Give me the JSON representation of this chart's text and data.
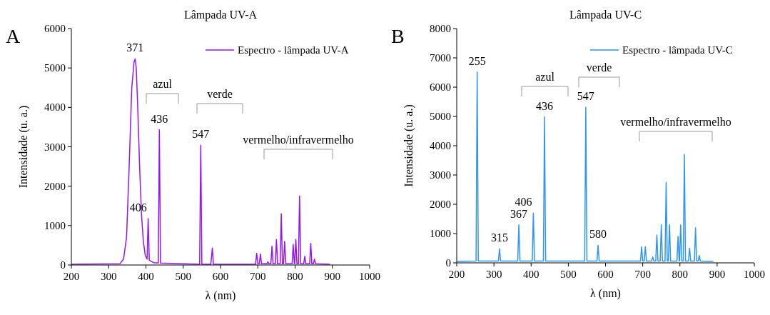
{
  "chart_data": [
    {
      "type": "line",
      "title": "Lâmpada UV-A",
      "xlabel": "λ (nm)",
      "ylabel": "Intensidade (u. a.)",
      "xlim": [
        200,
        1000
      ],
      "xticks": [
        200,
        300,
        400,
        500,
        600,
        700,
        800,
        900,
        1000
      ],
      "ylim": [
        0,
        6000
      ],
      "yticks": [
        0,
        1000,
        2000,
        3000,
        4000,
        5000,
        6000
      ],
      "grid": false,
      "legend": "top right",
      "marker": "none",
      "line_style": "solid",
      "series": [
        {
          "name": "Espectro - lâmpada UV-A",
          "color": "#9416f5",
          "x": [
            200,
            330,
            340,
            348,
            355,
            362,
            368,
            371,
            374,
            378,
            383,
            388,
            393,
            398,
            403,
            406,
            409,
            420,
            433,
            436,
            439,
            500,
            544,
            547,
            550,
            574,
            578,
            581,
            694,
            697,
            700,
            704,
            707,
            710,
            724,
            727,
            730,
            735,
            738,
            741,
            747,
            750,
            753,
            760,
            763,
            766,
            769,
            772,
            775,
            792,
            795,
            798,
            799,
            802,
            805,
            809,
            812,
            815,
            823,
            826,
            829,
            839,
            842,
            845,
            849,
            852,
            855,
            893
          ],
          "values": [
            20,
            30,
            150,
            700,
            2500,
            4500,
            5150,
            5230,
            5000,
            4000,
            2500,
            1300,
            600,
            250,
            150,
            1180,
            120,
            60,
            50,
            3430,
            50,
            30,
            20,
            3040,
            20,
            20,
            430,
            20,
            20,
            300,
            30,
            30,
            280,
            30,
            30,
            80,
            30,
            30,
            480,
            30,
            30,
            650,
            30,
            30,
            1300,
            30,
            30,
            600,
            30,
            30,
            520,
            30,
            30,
            650,
            30,
            30,
            1750,
            30,
            30,
            220,
            30,
            30,
            550,
            30,
            30,
            150,
            30,
            20
          ]
        }
      ],
      "annotations": [
        "A",
        "azul",
        "verde",
        "vermelho/infravermelho",
        {
          "text": "371",
          "x": 371,
          "y": 5230
        },
        {
          "text": "406",
          "x": 406,
          "y": 1180
        },
        {
          "text": "436",
          "x": 436,
          "y": 3430
        },
        {
          "text": "547",
          "x": 547,
          "y": 3040
        }
      ]
    },
    {
      "type": "line",
      "title": "Lâmpada UV-C",
      "xlabel": "λ (nm)",
      "ylabel": "Intensidade (u. a.)",
      "xlim": [
        200,
        1000
      ],
      "xticks": [
        200,
        300,
        400,
        500,
        600,
        700,
        800,
        900,
        1000
      ],
      "ylim": [
        0,
        8000
      ],
      "yticks": [
        0,
        1000,
        2000,
        3000,
        4000,
        5000,
        6000,
        7000,
        8000
      ],
      "grid": false,
      "legend": "top right",
      "marker": "none",
      "line_style": "solid",
      "series": [
        {
          "name": "Espectro - lâmpada UV-C",
          "color": "#2f95f5",
          "x": [
            200,
            252,
            255,
            258,
            312,
            315,
            318,
            364,
            367,
            370,
            403,
            406,
            409,
            433,
            436,
            439,
            544,
            547,
            550,
            577,
            580,
            583,
            694,
            697,
            700,
            704,
            707,
            710,
            724,
            727,
            730,
            735,
            738,
            741,
            747,
            750,
            753,
            760,
            763,
            766,
            769,
            772,
            775,
            792,
            795,
            798,
            799,
            802,
            805,
            809,
            812,
            815,
            823,
            826,
            829,
            839,
            842,
            845,
            849,
            852,
            855,
            890
          ],
          "values": [
            50,
            60,
            6520,
            60,
            60,
            480,
            60,
            60,
            1300,
            60,
            60,
            1700,
            60,
            60,
            4980,
            60,
            60,
            5310,
            60,
            60,
            600,
            60,
            60,
            550,
            60,
            60,
            550,
            60,
            60,
            200,
            60,
            60,
            950,
            60,
            60,
            1300,
            60,
            60,
            2750,
            60,
            60,
            1300,
            60,
            60,
            900,
            60,
            60,
            1300,
            60,
            60,
            3700,
            60,
            60,
            500,
            60,
            60,
            1200,
            60,
            60,
            250,
            60,
            50
          ]
        }
      ],
      "annotations": [
        "B",
        "azul",
        "verde",
        "vermelho/infravermelho",
        {
          "text": "255",
          "x": 255,
          "y": 6520
        },
        {
          "text": "315",
          "x": 315,
          "y": 480
        },
        {
          "text": "367",
          "x": 367,
          "y": 1300
        },
        {
          "text": "406",
          "x": 406,
          "y": 1700
        },
        {
          "text": "436",
          "x": 436,
          "y": 4980
        },
        {
          "text": "547",
          "x": 547,
          "y": 5310
        },
        {
          "text": "580",
          "x": 580,
          "y": 600
        }
      ]
    }
  ]
}
